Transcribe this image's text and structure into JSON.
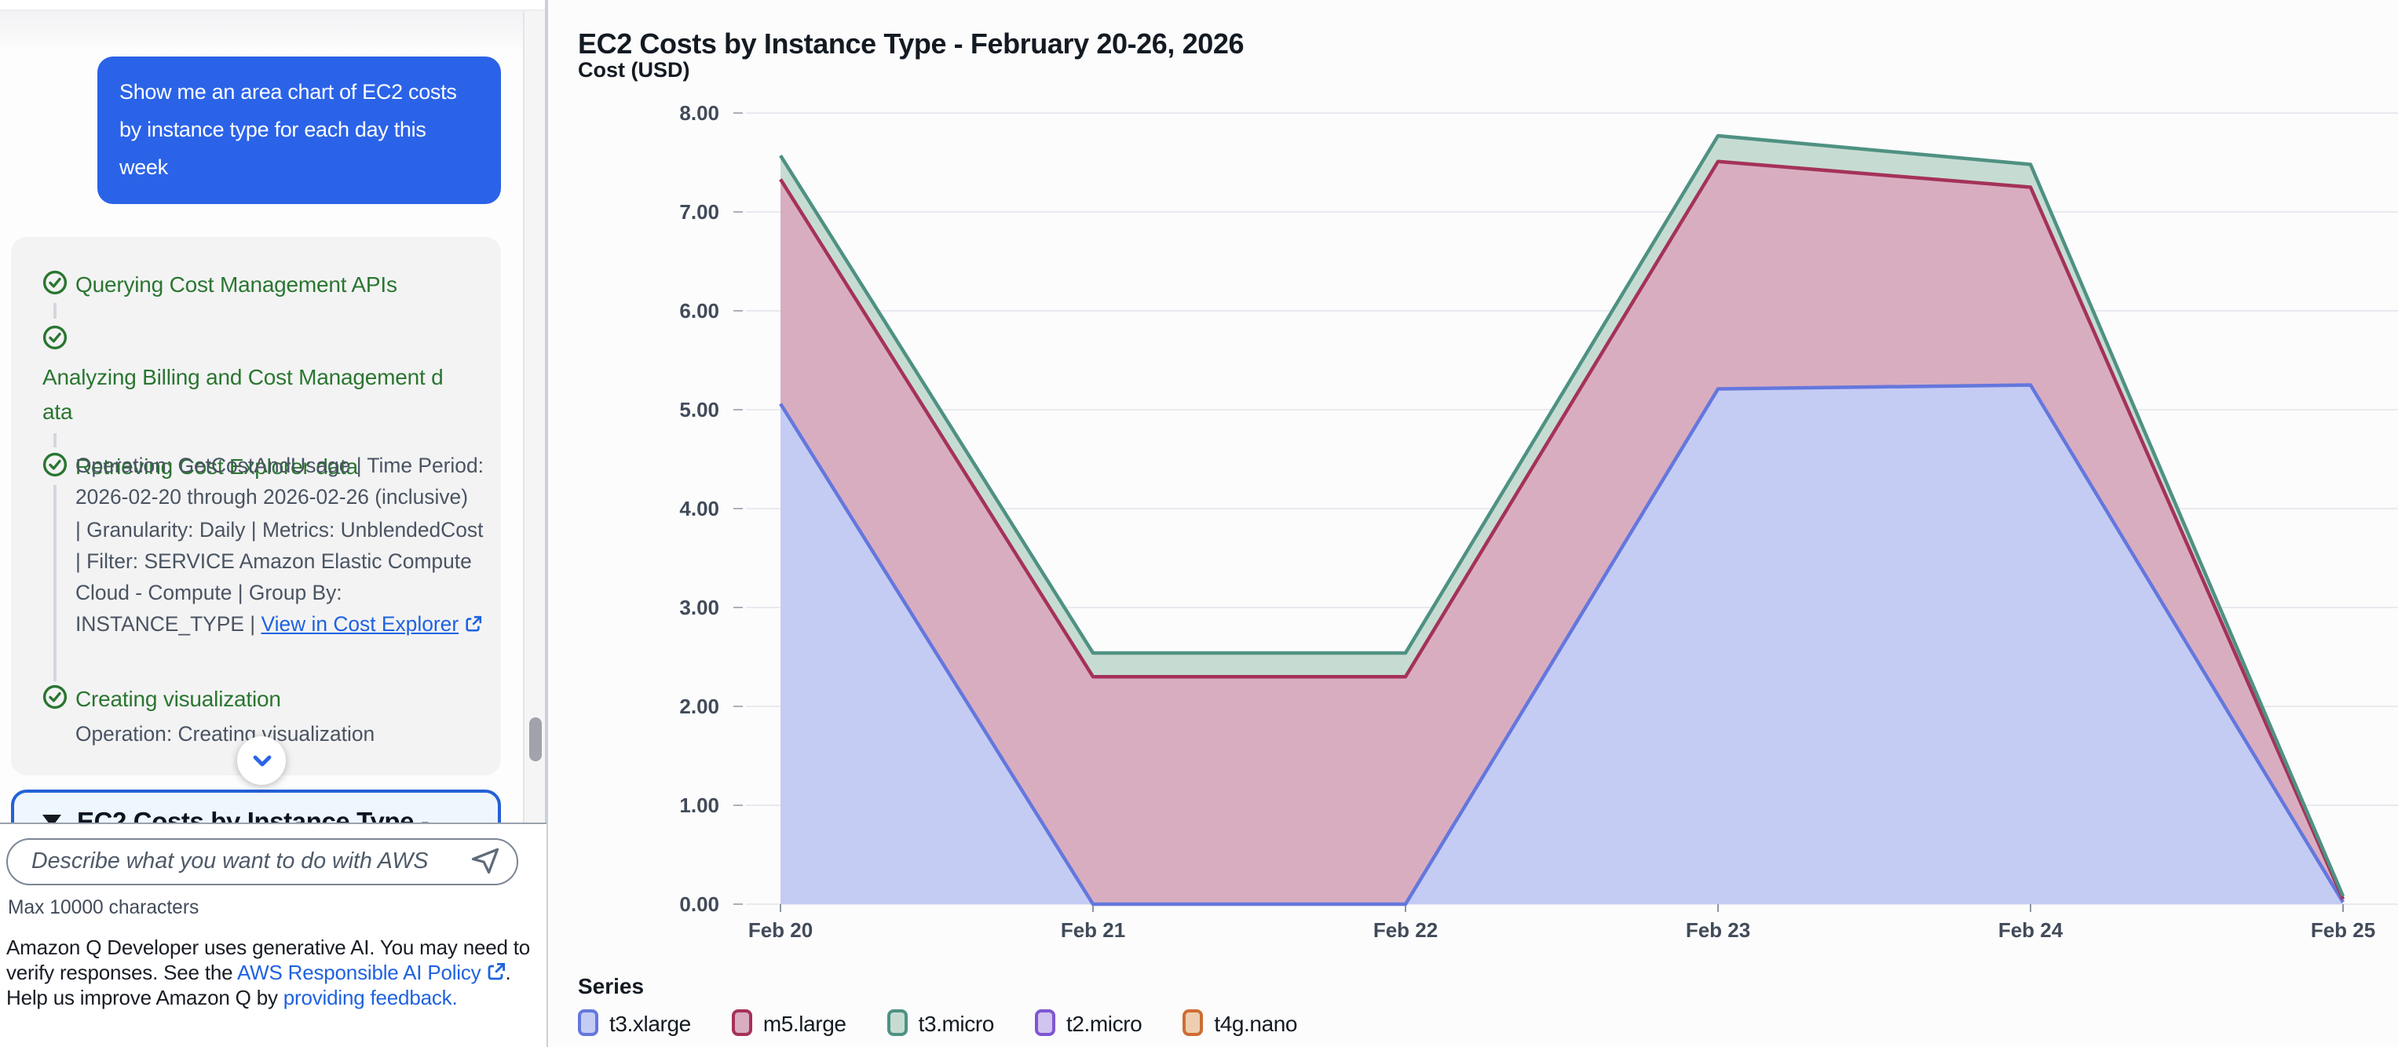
{
  "sidebar": {
    "user_message": "Show me an area chart of EC2 costs by instance type for each day this week",
    "steps": [
      {
        "label": "Querying Cost Management APIs"
      },
      {
        "label": "Analyzing Billing and Cost Management data",
        "label_lines": [
          "Analyzing Billing and Cost Management d",
          "ata"
        ]
      },
      {
        "label": "Retrieving Cost Explorer data",
        "detail_lines": [
          "Operation: GetCostAndUsage | Time Period:",
          "2026-02-20 through 2026-02-26 (inclusive)",
          "| Granularity: Daily | Metrics: UnblendedCost",
          "| Filter: SERVICE Amazon Elastic Compute",
          "Cloud - Compute | Group By:",
          "INSTANCE_TYPE | "
        ],
        "detail_link": "View in Cost Explorer"
      },
      {
        "label": "Creating visualization",
        "detail": "Operation: Creating visualization"
      }
    ],
    "collapsed_panel_title": "EC2 Costs by Instance Type -",
    "input_placeholder": "Describe what you want to do with AWS",
    "input_hint": "Max 10000 characters",
    "legal": {
      "text1": "Amazon Q Developer uses generative AI. You may need to verify responses. See the ",
      "link1": "AWS Responsible AI Policy",
      "text2": ". Help us improve Amazon Q by ",
      "link2": "providing feedback."
    }
  },
  "main": {
    "title": "EC2 Costs by Instance Type - February 20-26, 2026",
    "y_axis_title": "Cost (USD)",
    "legend_title": "Series"
  },
  "colors": {
    "user_bubble": "#2b63e8",
    "success_green": "#2a7630",
    "link_blue": "#1f62e0",
    "panel_border_blue": "#2361d8",
    "grid": "#e9e9ef",
    "axis_label": "#414b59"
  },
  "chart_data": {
    "type": "area",
    "stacked": true,
    "title": "EC2 Costs by Instance Type - February 20-26, 2026",
    "xlabel": "",
    "ylabel": "Cost (USD)",
    "x": [
      "Feb 20",
      "Feb 21",
      "Feb 22",
      "Feb 23",
      "Feb 24",
      "Feb 25"
    ],
    "ylim": [
      0,
      8
    ],
    "y_ticks": [
      "0.00",
      "1.00",
      "2.00",
      "3.00",
      "4.00",
      "5.00",
      "6.00",
      "7.00",
      "8.00"
    ],
    "grid": true,
    "legend_position": "bottom",
    "series": [
      {
        "name": "t3.xlarge",
        "values": [
          5.06,
          0.0,
          0.0,
          5.21,
          5.25,
          0.02
        ],
        "line": "#6477dd",
        "fill": "#c4ccf4"
      },
      {
        "name": "m5.large",
        "values": [
          2.27,
          2.3,
          2.3,
          2.3,
          2.0,
          0.03
        ],
        "line": "#a43259",
        "fill": "#d9adc0"
      },
      {
        "name": "t3.micro",
        "values": [
          0.24,
          0.24,
          0.24,
          0.26,
          0.23,
          0.03
        ],
        "line": "#4f9182",
        "fill": "#c6dcd3"
      },
      {
        "name": "t2.micro",
        "values": [
          0,
          0,
          0,
          0,
          0,
          0
        ],
        "line": "#7e57d1",
        "fill": "#d2c4f0"
      },
      {
        "name": "t4g.nano",
        "values": [
          0,
          0,
          0,
          0,
          0,
          0
        ],
        "line": "#cd6d33",
        "fill": "#eeceb0"
      }
    ]
  }
}
